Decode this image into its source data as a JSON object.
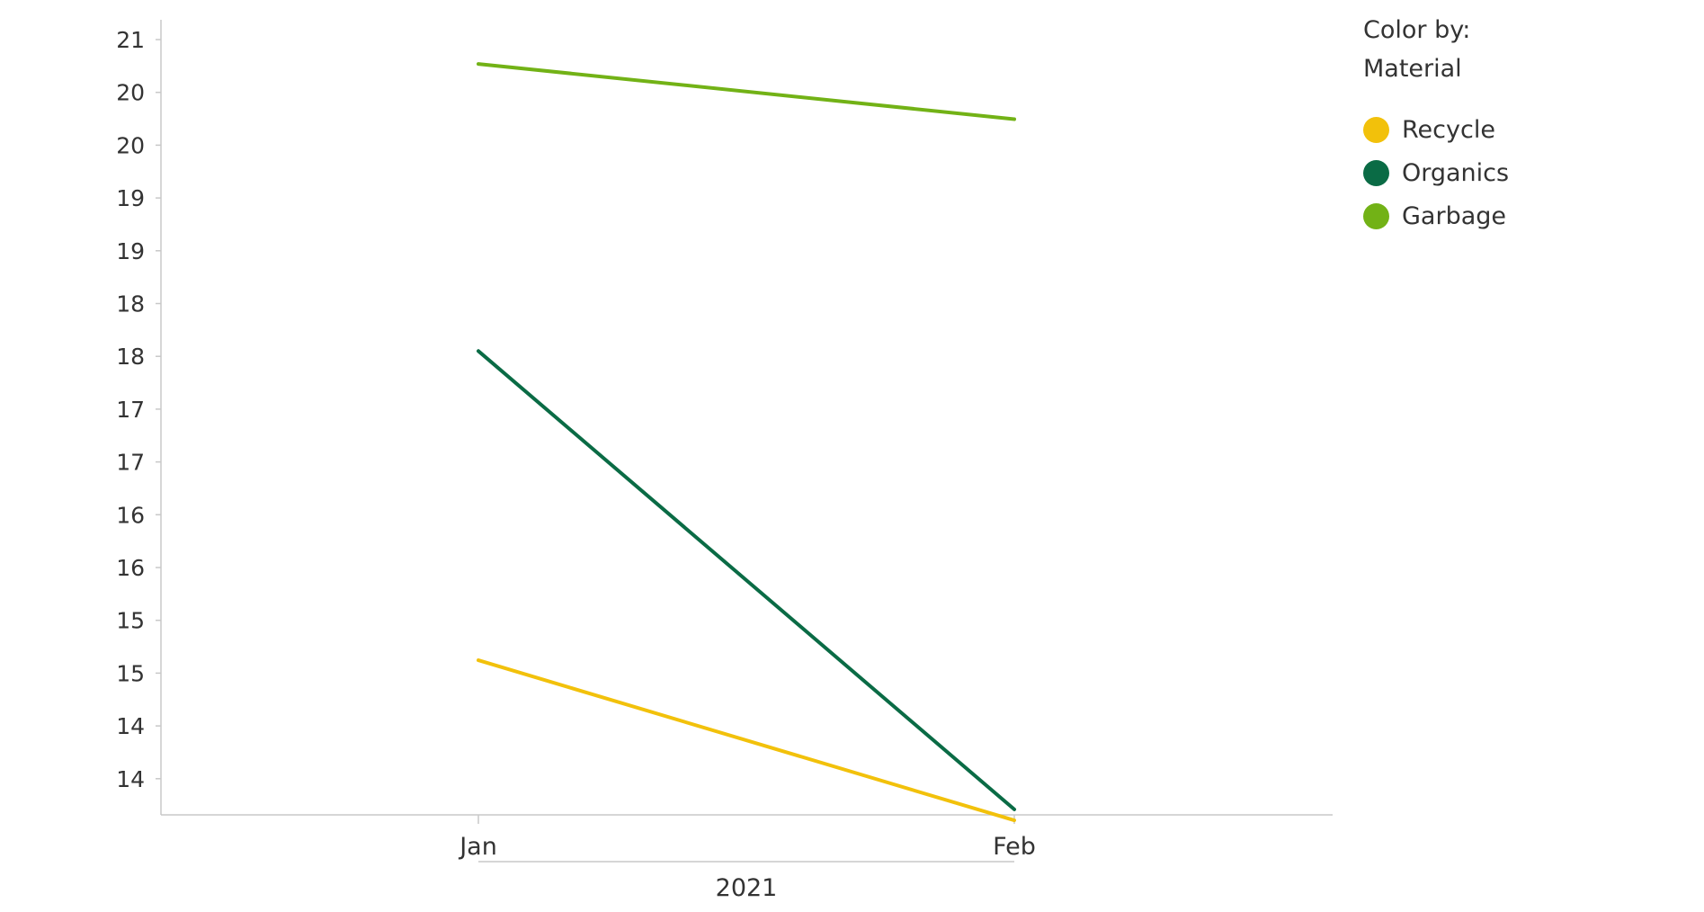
{
  "chart_data": {
    "type": "line",
    "categories": [
      "Jan",
      "Feb"
    ],
    "x_group_label": "2021",
    "y_ticks": [
      "21",
      "20",
      "20",
      "19",
      "19",
      "18",
      "18",
      "17",
      "17",
      "16",
      "16",
      "15",
      "15",
      "14",
      "14"
    ],
    "ylim": [
      13.9,
      21.1
    ],
    "series": [
      {
        "name": "Recycle",
        "color": "#f2c10b",
        "values": [
          15.3,
          13.85
        ]
      },
      {
        "name": "Organics",
        "color": "#0a6b45",
        "values": [
          18.1,
          13.95
        ]
      },
      {
        "name": "Garbage",
        "color": "#72b216",
        "values": [
          20.7,
          20.2
        ]
      }
    ],
    "legend_position": "top-right",
    "grid": false
  },
  "legend": {
    "title_line1": "Color by:",
    "title_line2": "Material",
    "items": [
      {
        "label": "Recycle",
        "color": "#f2c10b"
      },
      {
        "label": "Organics",
        "color": "#0a6b45"
      },
      {
        "label": "Garbage",
        "color": "#72b216"
      }
    ]
  }
}
